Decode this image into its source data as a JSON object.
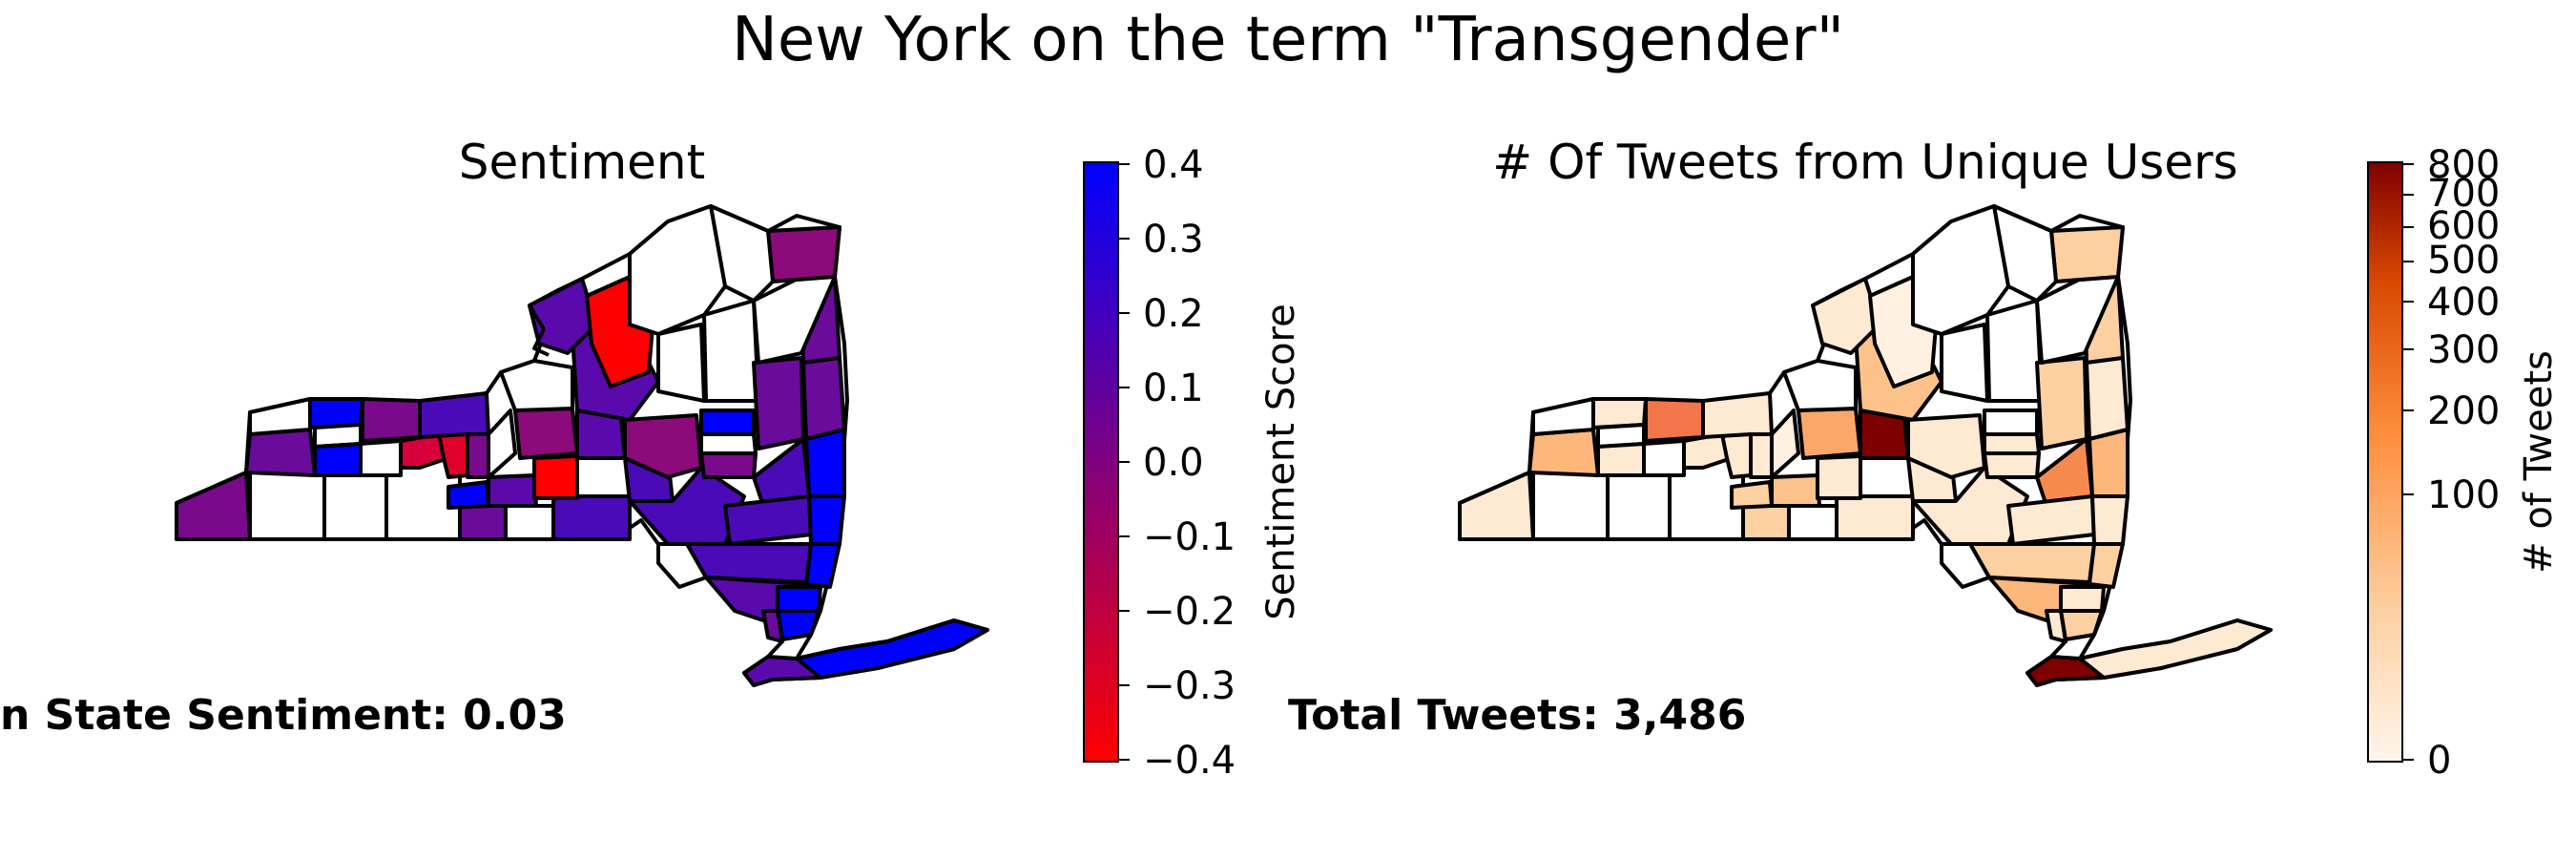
{
  "figure": {
    "title": "New York on the term \"Transgender\""
  },
  "sentiment_panel": {
    "title": "Sentiment",
    "stat": "n State Sentiment: 0.03",
    "colorbar": {
      "label": "Sentiment Score",
      "ticks": [
        "0.4",
        "0.3",
        "0.2",
        "0.1",
        "0.0",
        "−0.1",
        "−0.2",
        "−0.3",
        "−0.4"
      ],
      "range": [
        -0.4,
        0.4
      ],
      "colors": [
        "#ff0000",
        "#0000ff"
      ]
    },
    "missing_color": "#ffffff"
  },
  "tweets_panel": {
    "title": "# Of Tweets from Unique Users",
    "stat": "Total Tweets: 3,486",
    "colorbar": {
      "label": "# of Tweets",
      "ticks": [
        "800",
        "700",
        "600",
        "500",
        "400",
        "300",
        "200",
        "100",
        "0"
      ],
      "scale": "sqrt",
      "range": [
        0,
        800
      ],
      "colors": [
        "#fff5eb",
        "#fdd0a2",
        "#fd8d3c",
        "#d94801",
        "#7f0000"
      ]
    },
    "missing_color": "#ffffff"
  }
}
